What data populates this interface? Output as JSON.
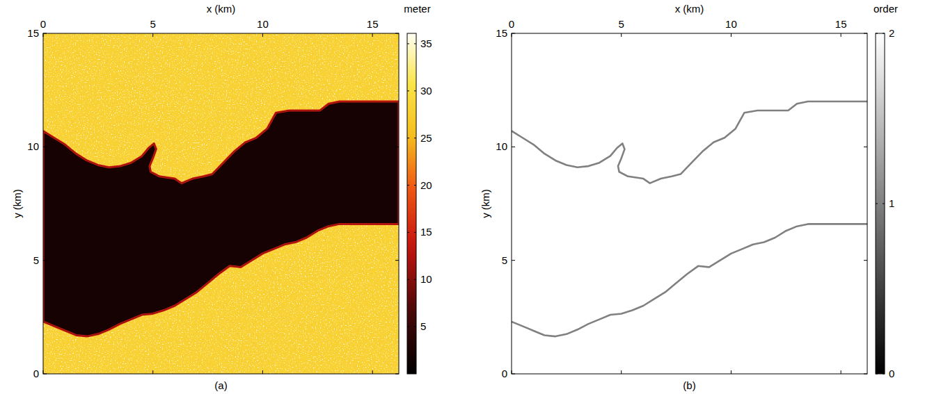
{
  "chart_data": [
    {
      "type": "heatmap",
      "panel": "(a)",
      "x_label": "x (km)",
      "y_label": "y (km)",
      "xlim": [
        0,
        16.2
      ],
      "ylim": [
        0,
        15
      ],
      "xticks": [
        0,
        5,
        10,
        15
      ],
      "yticks": [
        0,
        5,
        10,
        15
      ],
      "colorbar": {
        "label": "meter",
        "range": [
          0,
          36.1
        ],
        "ticks": [
          5,
          10,
          15,
          20,
          25,
          30,
          35
        ]
      },
      "land_value": 28,
      "water_value": 2,
      "series": [
        {
          "x": [
            0,
            0.5,
            1,
            1.5,
            2,
            2.5,
            3,
            3.5,
            4,
            4.5,
            4.8,
            5.05,
            5.15,
            5.0,
            4.85,
            4.9,
            5.3,
            6.0,
            6.3,
            6.8,
            7.3,
            7.7,
            8.2,
            8.7,
            9.2,
            9.7,
            10.2,
            10.6,
            11.2,
            12.0,
            12.6,
            13.0,
            13.5,
            16.2
          ],
          "values": [
            10.7,
            10.4,
            10.1,
            9.7,
            9.4,
            9.2,
            9.1,
            9.15,
            9.3,
            9.6,
            9.95,
            10.15,
            9.9,
            9.5,
            9.15,
            8.9,
            8.7,
            8.6,
            8.4,
            8.6,
            8.7,
            8.8,
            9.3,
            9.8,
            10.2,
            10.4,
            10.8,
            11.5,
            11.6,
            11.6,
            11.6,
            11.9,
            12.0,
            12.0
          ]
        },
        {
          "x": [
            0,
            0.5,
            1,
            1.5,
            2,
            2.5,
            3,
            3.5,
            4,
            4.5,
            5,
            5.5,
            6,
            6.5,
            7,
            7.5,
            8,
            8.5,
            9,
            9.5,
            10,
            10.5,
            11,
            11.5,
            12,
            12.5,
            13,
            13.5,
            16.2
          ],
          "values": [
            2.3,
            2.1,
            1.9,
            1.7,
            1.65,
            1.75,
            1.95,
            2.2,
            2.4,
            2.6,
            2.65,
            2.8,
            3.0,
            3.3,
            3.6,
            4.0,
            4.4,
            4.75,
            4.7,
            5.0,
            5.3,
            5.5,
            5.7,
            5.8,
            6.0,
            6.3,
            6.5,
            6.6,
            6.6
          ]
        }
      ]
    },
    {
      "type": "line",
      "panel": "(b)",
      "x_label": "x (km)",
      "y_label": "y (km)",
      "xlim": [
        0,
        16.2
      ],
      "ylim": [
        0,
        15
      ],
      "xticks": [
        0,
        5,
        10,
        15
      ],
      "yticks": [
        0,
        5,
        10,
        15
      ],
      "colorbar": {
        "label": "order",
        "range": [
          0,
          2
        ],
        "ticks": [
          0,
          1,
          2
        ]
      },
      "edge_value": 1,
      "background_value": 2,
      "series": [
        {
          "x": [
            0,
            0.5,
            1,
            1.5,
            2,
            2.5,
            3,
            3.5,
            4,
            4.5,
            4.8,
            5.05,
            5.15,
            5.0,
            4.85,
            4.9,
            5.3,
            6.0,
            6.3,
            6.8,
            7.3,
            7.7,
            8.2,
            8.7,
            9.2,
            9.7,
            10.2,
            10.6,
            11.2,
            12.0,
            12.6,
            13.0,
            13.5,
            16.2
          ],
          "values": [
            10.7,
            10.4,
            10.1,
            9.7,
            9.4,
            9.2,
            9.1,
            9.15,
            9.3,
            9.6,
            9.95,
            10.15,
            9.9,
            9.5,
            9.15,
            8.9,
            8.7,
            8.6,
            8.4,
            8.6,
            8.7,
            8.8,
            9.3,
            9.8,
            10.2,
            10.4,
            10.8,
            11.5,
            11.6,
            11.6,
            11.6,
            11.9,
            12.0,
            12.0
          ]
        },
        {
          "x": [
            0,
            0.5,
            1,
            1.5,
            2,
            2.5,
            3,
            3.5,
            4,
            4.5,
            5,
            5.5,
            6,
            6.5,
            7,
            7.5,
            8,
            8.5,
            9,
            9.5,
            10,
            10.5,
            11,
            11.5,
            12,
            12.5,
            13,
            13.5,
            16.2
          ],
          "values": [
            2.3,
            2.1,
            1.9,
            1.7,
            1.65,
            1.75,
            1.95,
            2.2,
            2.4,
            2.6,
            2.65,
            2.8,
            3.0,
            3.3,
            3.6,
            4.0,
            4.4,
            4.75,
            4.7,
            5.0,
            5.3,
            5.5,
            5.7,
            5.8,
            6.0,
            6.3,
            6.5,
            6.6,
            6.6
          ]
        }
      ]
    }
  ]
}
